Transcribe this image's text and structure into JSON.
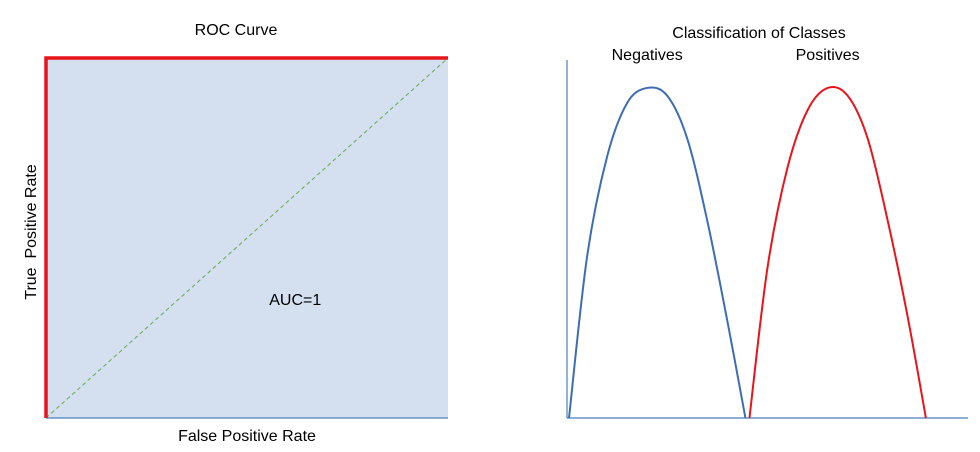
{
  "chart_data": [
    {
      "type": "area",
      "title": "ROC Curve",
      "xlabel": "False Positive Rate",
      "ylabel": "True  Positive Rate",
      "xlim": [
        0,
        1
      ],
      "ylim": [
        0,
        1
      ],
      "grid": false,
      "annotations": [
        {
          "text": "AUC=1",
          "x": 0.62,
          "y": 0.33
        }
      ],
      "series": [
        {
          "role": "roc",
          "color": "#e8141b",
          "x": [
            0,
            0,
            1
          ],
          "y": [
            0,
            1,
            1
          ]
        },
        {
          "role": "chance",
          "color": "#6aa84f",
          "style": "dashed",
          "x": [
            0,
            1
          ],
          "y": [
            0,
            1
          ]
        }
      ],
      "fill_color": "#d4dff0",
      "axis_color": "#4a7ebb"
    },
    {
      "type": "line",
      "title": "Classification of Classes",
      "xlabel": "",
      "ylabel": "",
      "xlim": [
        0,
        1
      ],
      "ylim": [
        0,
        1
      ],
      "grid": false,
      "axis_color": "#4a7ebb",
      "series": [
        {
          "name": "Negatives",
          "color": "#3d6db5",
          "x": [
            0.005,
            0.05,
            0.1,
            0.15,
            0.2,
            0.25,
            0.3,
            0.35,
            0.4,
            0.445
          ],
          "y": [
            0,
            0.45,
            0.73,
            0.88,
            0.922,
            0.9,
            0.78,
            0.55,
            0.27,
            0
          ]
        },
        {
          "name": "Positives",
          "color": "#e8141b",
          "x": [
            0.455,
            0.5,
            0.55,
            0.6,
            0.65,
            0.7,
            0.75,
            0.8,
            0.85,
            0.895
          ],
          "y": [
            0,
            0.42,
            0.7,
            0.86,
            0.922,
            0.9,
            0.78,
            0.55,
            0.28,
            0
          ]
        }
      ]
    }
  ]
}
